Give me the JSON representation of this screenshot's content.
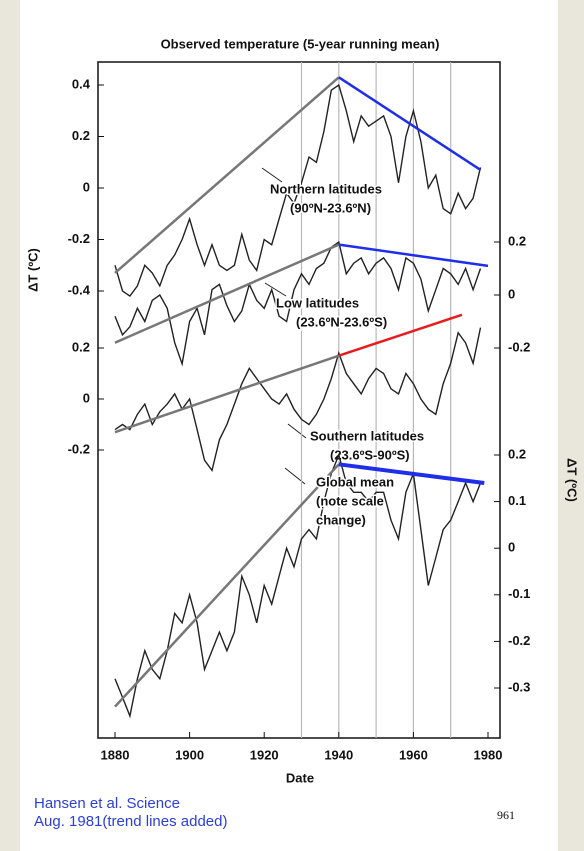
{
  "figure": {
    "title": "Observed temperature (5-year running mean)",
    "xlabel": "Date",
    "ylabel_left": "ΔT (ºC)",
    "ylabel_right": "ΔT (ºC)",
    "xlim": [
      1880,
      1980
    ],
    "xticks": [
      1880,
      1900,
      1920,
      1940,
      1960,
      1980
    ],
    "vlines": [
      1930,
      1940,
      1950,
      1960,
      1970
    ]
  },
  "chart_data": [
    {
      "type": "line",
      "annotation": [
        "Northern latitudes",
        "(90ºN-23.6ºN)"
      ],
      "y_axis_side": "left",
      "ylim": [
        -0.4,
        0.4
      ],
      "yticks": [
        0.4,
        0.2,
        0,
        -0.2,
        -0.4
      ],
      "color": "#222",
      "x": [
        1880,
        1882,
        1884,
        1886,
        1888,
        1890,
        1892,
        1894,
        1896,
        1898,
        1900,
        1902,
        1904,
        1906,
        1908,
        1910,
        1912,
        1914,
        1916,
        1918,
        1920,
        1922,
        1924,
        1926,
        1928,
        1930,
        1932,
        1934,
        1936,
        1938,
        1940,
        1942,
        1944,
        1946,
        1948,
        1950,
        1952,
        1954,
        1956,
        1958,
        1960,
        1962,
        1964,
        1966,
        1968,
        1970,
        1972,
        1974,
        1976,
        1978
      ],
      "values": [
        -0.3,
        -0.4,
        -0.42,
        -0.38,
        -0.3,
        -0.33,
        -0.38,
        -0.3,
        -0.26,
        -0.2,
        -0.12,
        -0.22,
        -0.3,
        -0.22,
        -0.3,
        -0.32,
        -0.3,
        -0.18,
        -0.28,
        -0.32,
        -0.2,
        -0.22,
        -0.12,
        -0.02,
        -0.06,
        0.02,
        0.12,
        0.1,
        0.22,
        0.38,
        0.4,
        0.3,
        0.18,
        0.28,
        0.24,
        0.26,
        0.28,
        0.2,
        0.02,
        0.2,
        0.3,
        0.18,
        0.0,
        0.05,
        -0.08,
        -0.1,
        -0.02,
        -0.08,
        -0.04,
        0.08
      ],
      "trend_lines": [
        {
          "color": "#777",
          "x": [
            1880,
            1940
          ],
          "values": [
            -0.33,
            0.43
          ]
        },
        {
          "color": "#1f2ee8",
          "x": [
            1940,
            1978
          ],
          "values": [
            0.43,
            0.07
          ]
        }
      ]
    },
    {
      "type": "line",
      "annotation": [
        "Low latitudes",
        "(23.6ºN-23.6ºS)"
      ],
      "y_axis_side": "right",
      "ylim": [
        -0.2,
        0.2
      ],
      "yticks": [
        0.2,
        0,
        -0.2
      ],
      "color": "#222",
      "x": [
        1880,
        1882,
        1884,
        1886,
        1888,
        1890,
        1892,
        1894,
        1896,
        1898,
        1900,
        1902,
        1904,
        1906,
        1908,
        1910,
        1912,
        1914,
        1916,
        1918,
        1920,
        1922,
        1924,
        1926,
        1928,
        1930,
        1932,
        1934,
        1936,
        1938,
        1940,
        1942,
        1944,
        1946,
        1948,
        1950,
        1952,
        1954,
        1956,
        1958,
        1960,
        1962,
        1964,
        1966,
        1968,
        1970,
        1972,
        1974,
        1976,
        1978
      ],
      "values": [
        -0.08,
        -0.15,
        -0.12,
        -0.05,
        -0.1,
        -0.02,
        0.0,
        -0.05,
        -0.18,
        -0.26,
        -0.1,
        -0.05,
        -0.15,
        0.02,
        0.04,
        -0.04,
        -0.1,
        -0.06,
        0.04,
        -0.02,
        -0.05,
        0.02,
        -0.08,
        -0.1,
        0.02,
        0.08,
        0.04,
        0.1,
        0.12,
        0.18,
        0.2,
        0.08,
        0.12,
        0.14,
        0.08,
        0.12,
        0.14,
        0.1,
        0.02,
        0.14,
        0.12,
        0.06,
        -0.06,
        0.02,
        0.1,
        0.08,
        0.04,
        0.1,
        0.02,
        0.1
      ],
      "trend_lines": [
        {
          "color": "#777",
          "x": [
            1880,
            1940
          ],
          "values": [
            -0.18,
            0.19
          ]
        },
        {
          "color": "#1f2ee8",
          "x": [
            1940,
            1980
          ],
          "values": [
            0.19,
            0.11
          ]
        }
      ]
    },
    {
      "type": "line",
      "annotation": [
        "Southern latitudes",
        "(23.6ºS-90ºS)"
      ],
      "y_axis_side": "left",
      "ylim": [
        -0.2,
        0.2
      ],
      "yticks": [
        0.2,
        0,
        -0.2
      ],
      "color": "#222",
      "x": [
        1880,
        1882,
        1884,
        1886,
        1888,
        1890,
        1892,
        1894,
        1896,
        1898,
        1900,
        1902,
        1904,
        1906,
        1908,
        1910,
        1912,
        1914,
        1916,
        1918,
        1920,
        1922,
        1924,
        1926,
        1928,
        1930,
        1932,
        1934,
        1936,
        1938,
        1940,
        1942,
        1944,
        1946,
        1948,
        1950,
        1952,
        1954,
        1956,
        1958,
        1960,
        1962,
        1964,
        1966,
        1968,
        1970,
        1972,
        1974,
        1976,
        1978
      ],
      "values": [
        -0.12,
        -0.1,
        -0.12,
        -0.06,
        -0.02,
        -0.1,
        -0.05,
        -0.02,
        0.02,
        -0.04,
        0.0,
        -0.12,
        -0.24,
        -0.28,
        -0.16,
        -0.1,
        -0.02,
        0.06,
        0.12,
        0.08,
        0.04,
        0.0,
        -0.02,
        0.02,
        -0.04,
        -0.08,
        -0.1,
        -0.06,
        0.0,
        0.08,
        0.18,
        0.1,
        0.06,
        0.02,
        0.08,
        0.12,
        0.1,
        0.04,
        0.02,
        0.1,
        0.06,
        0.0,
        -0.04,
        -0.06,
        0.06,
        0.14,
        0.26,
        0.22,
        0.14,
        0.28
      ],
      "trend_lines": [
        {
          "color": "#777",
          "x": [
            1880,
            1940
          ],
          "values": [
            -0.13,
            0.17
          ]
        },
        {
          "color": "#e81c1c",
          "x": [
            1940,
            1973
          ],
          "values": [
            0.17,
            0.33
          ]
        }
      ]
    },
    {
      "type": "line",
      "annotation": [
        "Global mean",
        "(note scale",
        "change)"
      ],
      "y_axis_side": "right",
      "ylim": [
        -0.3,
        0.2
      ],
      "yticks": [
        0.2,
        0.1,
        0,
        -0.1,
        -0.2,
        -0.3
      ],
      "color": "#222",
      "x": [
        1880,
        1882,
        1884,
        1886,
        1888,
        1890,
        1892,
        1894,
        1896,
        1898,
        1900,
        1902,
        1904,
        1906,
        1908,
        1910,
        1912,
        1914,
        1916,
        1918,
        1920,
        1922,
        1924,
        1926,
        1928,
        1930,
        1932,
        1934,
        1936,
        1938,
        1940,
        1942,
        1944,
        1946,
        1948,
        1950,
        1952,
        1954,
        1956,
        1958,
        1960,
        1962,
        1964,
        1966,
        1968,
        1970,
        1972,
        1974,
        1976,
        1978
      ],
      "values": [
        -0.28,
        -0.32,
        -0.36,
        -0.28,
        -0.22,
        -0.26,
        -0.28,
        -0.22,
        -0.14,
        -0.16,
        -0.1,
        -0.16,
        -0.26,
        -0.22,
        -0.18,
        -0.22,
        -0.18,
        -0.06,
        -0.1,
        -0.16,
        -0.08,
        -0.12,
        -0.06,
        0.0,
        -0.04,
        0.02,
        0.04,
        0.02,
        0.1,
        0.16,
        0.2,
        0.14,
        0.12,
        0.12,
        0.1,
        0.12,
        0.12,
        0.06,
        0.02,
        0.12,
        0.16,
        0.04,
        -0.08,
        -0.02,
        0.04,
        0.06,
        0.1,
        0.14,
        0.1,
        0.14
      ],
      "trend_lines": [
        {
          "color": "#777",
          "x": [
            1880,
            1940
          ],
          "values": [
            -0.34,
            0.18
          ]
        },
        {
          "color": "#1f2ee8",
          "x": [
            1940,
            1979
          ],
          "values": [
            0.18,
            0.14
          ]
        }
      ]
    }
  ],
  "caption": [
    "Hansen et al. Science",
    "Aug. 1981(trend lines added)"
  ],
  "page_number": "961"
}
